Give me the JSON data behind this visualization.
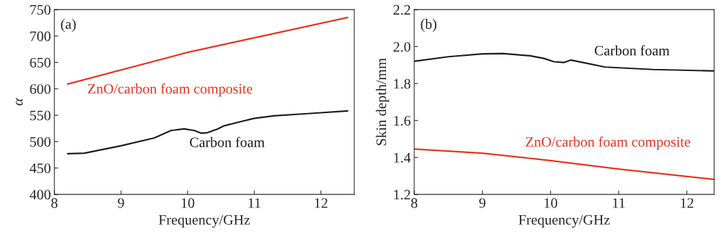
{
  "chart_data": [
    {
      "type": "line",
      "title": "(a)",
      "xlabel": "Frequency/GHz",
      "ylabel": "α",
      "xlim": [
        8,
        12.5
      ],
      "ylim": [
        400,
        750
      ],
      "xticks": [
        8,
        9,
        10,
        11,
        12
      ],
      "yticks": [
        400,
        450,
        500,
        550,
        600,
        650,
        700,
        750
      ],
      "grid": false,
      "legend": false,
      "series": [
        {
          "name": "ZnO/carbon foam composite",
          "color": "#e8321e",
          "x": [
            8.2,
            10,
            12.4
          ],
          "values": [
            609,
            669,
            735
          ]
        },
        {
          "name": "Carbon foam",
          "color": "#1a1a1a",
          "x": [
            8.2,
            8.45,
            9.0,
            9.5,
            9.75,
            9.95,
            10.1,
            10.2,
            10.3,
            10.45,
            10.55,
            10.8,
            11.0,
            11.3,
            11.8,
            12.4
          ],
          "values": [
            477,
            478,
            492,
            507,
            521,
            524,
            521,
            516,
            517,
            524,
            530,
            538,
            544,
            549,
            553,
            558
          ]
        }
      ]
    },
    {
      "type": "line",
      "title": "(b)",
      "xlabel": "Frequency/GHz",
      "ylabel": "Skin depth/mm",
      "xlim": [
        8,
        12.4
      ],
      "ylim": [
        1.2,
        2.2
      ],
      "xticks": [
        8,
        9,
        10,
        11,
        12
      ],
      "yticks": [
        {
          "value": 1.2,
          "label": "1.2"
        },
        {
          "value": 1.4,
          "label": "1.4"
        },
        {
          "value": 1.6,
          "label": "1.6"
        },
        {
          "value": 1.8,
          "label": "1.8"
        },
        {
          "value": 2.0,
          "label": "2.0"
        },
        {
          "value": 2.2,
          "label": "2.2"
        }
      ],
      "grid": false,
      "legend": false,
      "series": [
        {
          "name": "Carbon foam",
          "color": "#1a1a1a",
          "x": [
            8.0,
            8.5,
            9.0,
            9.3,
            9.7,
            9.9,
            10.05,
            10.2,
            10.3,
            10.5,
            10.8,
            11.5,
            12.4
          ],
          "values": [
            1.92,
            1.945,
            1.96,
            1.962,
            1.95,
            1.936,
            1.918,
            1.914,
            1.927,
            1.912,
            1.889,
            1.876,
            1.868
          ]
        },
        {
          "name": "ZnO/carbon foam composite",
          "color": "#e8321e",
          "x": [
            8.0,
            9.0,
            9.8,
            10.0,
            11.0,
            12.0,
            12.4
          ],
          "values": [
            1.445,
            1.423,
            1.391,
            1.383,
            1.337,
            1.297,
            1.281
          ]
        }
      ]
    }
  ]
}
